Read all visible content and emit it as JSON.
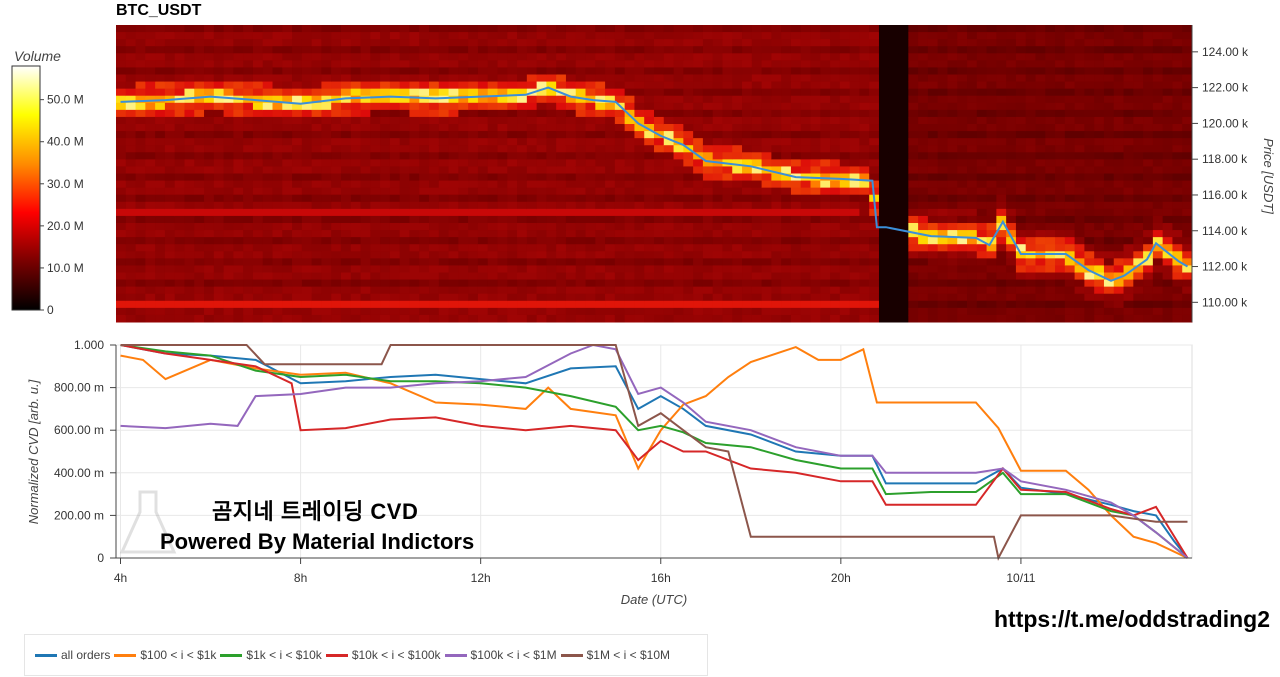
{
  "chart_data": [
    {
      "type": "heatmap",
      "title": "BTC_USDT",
      "ylabel": "Price [USDT]",
      "ylim": [
        108900,
        125500
      ],
      "yticks": [
        110000,
        112000,
        114000,
        116000,
        118000,
        120000,
        122000,
        124000
      ],
      "ytick_labels": [
        "110.00 k",
        "112.00 k",
        "114.00 k",
        "116.00 k",
        "118.00 k",
        "120.00 k",
        "122.00 k",
        "124.00 k"
      ],
      "colorbar": {
        "title": "Volume",
        "range": [
          0,
          58000000
        ],
        "ticks": [
          0,
          10000000,
          20000000,
          30000000,
          40000000,
          50000000
        ],
        "tick_labels": [
          "0",
          "10.0 M",
          "20.0 M",
          "30.0 M",
          "40.0 M",
          "50.0 M"
        ]
      },
      "price_line": {
        "x": [
          4.0,
          5.0,
          6.0,
          7.0,
          8.0,
          9.0,
          10.0,
          11.0,
          12.0,
          13.0,
          13.5,
          14.0,
          14.5,
          15.0,
          15.5,
          16.0,
          16.5,
          17.0,
          18.0,
          19.0,
          20.0,
          20.7,
          20.8,
          21.0,
          22.0,
          23.0,
          23.3,
          23.6,
          24.0,
          25.0,
          25.5,
          26.0,
          26.3,
          26.8,
          27.0,
          27.5,
          27.7
        ],
        "y": [
          121200,
          121300,
          121500,
          121300,
          121100,
          121400,
          121500,
          121400,
          121500,
          121600,
          122000,
          121500,
          121300,
          121200,
          120000,
          119300,
          118800,
          117900,
          117600,
          117000,
          116900,
          116800,
          114200,
          114200,
          113700,
          113600,
          113200,
          114500,
          112700,
          112700,
          111800,
          111200,
          111500,
          112400,
          113300,
          112300,
          112000
        ]
      }
    },
    {
      "type": "line",
      "xlabel": "Date (UTC)",
      "ylabel": "Normalized CVD [arb. u.]",
      "ylim": [
        0,
        1000
      ],
      "yticks": [
        0,
        200,
        400,
        600,
        800,
        1000
      ],
      "ytick_labels": [
        "0",
        "200.00 m",
        "400.00 m",
        "600.00 m",
        "800.00 m",
        "1.000"
      ],
      "xlim": [
        3.9,
        27.8
      ],
      "xticks": [
        4,
        8,
        12,
        16,
        20,
        24
      ],
      "xtick_labels": [
        "4h",
        "8h",
        "12h",
        "16h",
        "20h",
        "10/11"
      ],
      "series": [
        {
          "name": "all orders",
          "color": "#1f77b4",
          "x": [
            4.0,
            5.0,
            6.0,
            7.0,
            8.0,
            9.0,
            10.0,
            11.0,
            12.0,
            13.0,
            14.0,
            15.0,
            15.5,
            16.0,
            16.5,
            17.0,
            18.0,
            19.0,
            20.0,
            20.7,
            21.0,
            22.0,
            23.0,
            23.6,
            24.0,
            25.0,
            26.0,
            26.5,
            27.0,
            27.4,
            27.7
          ],
          "y": [
            1000,
            960,
            950,
            930,
            820,
            830,
            850,
            860,
            840,
            820,
            890,
            900,
            700,
            760,
            700,
            620,
            580,
            500,
            480,
            480,
            350,
            350,
            350,
            420,
            330,
            300,
            250,
            220,
            200,
            80,
            0
          ]
        },
        {
          "name": "$100 < i < $1k",
          "color": "#ff7f0e",
          "x": [
            4.0,
            4.5,
            5.0,
            6.0,
            7.0,
            8.0,
            9.0,
            10.0,
            11.0,
            12.0,
            13.0,
            13.5,
            14.0,
            15.0,
            15.5,
            16.0,
            16.5,
            17.0,
            17.5,
            18.0,
            19.0,
            19.5,
            20.0,
            20.5,
            20.8,
            21.0,
            22.0,
            23.0,
            23.5,
            24.0,
            24.5,
            25.0,
            25.5,
            26.0,
            26.5,
            27.0,
            27.7
          ],
          "y": [
            950,
            930,
            840,
            930,
            890,
            860,
            870,
            820,
            730,
            720,
            700,
            800,
            700,
            670,
            420,
            600,
            720,
            760,
            850,
            920,
            990,
            930,
            930,
            980,
            730,
            730,
            730,
            730,
            610,
            410,
            410,
            410,
            320,
            200,
            100,
            70,
            0
          ]
        },
        {
          "name": "$1k < i < $10k",
          "color": "#2ca02c",
          "x": [
            4.0,
            5.0,
            6.0,
            7.0,
            8.0,
            9.0,
            10.0,
            11.0,
            12.0,
            13.0,
            14.0,
            15.0,
            15.5,
            16.0,
            16.5,
            17.0,
            18.0,
            19.0,
            20.0,
            20.7,
            21.0,
            22.0,
            23.0,
            23.6,
            24.0,
            25.0,
            26.0,
            26.5,
            27.0,
            27.7
          ],
          "y": [
            1000,
            970,
            950,
            880,
            850,
            860,
            830,
            830,
            820,
            800,
            760,
            710,
            600,
            620,
            590,
            540,
            520,
            460,
            420,
            420,
            300,
            310,
            310,
            400,
            300,
            300,
            220,
            200,
            120,
            0
          ]
        },
        {
          "name": "$10k < i < $100k",
          "color": "#d62728",
          "x": [
            4.0,
            5.0,
            6.0,
            7.0,
            7.8,
            8.0,
            9.0,
            10.0,
            11.0,
            12.0,
            13.0,
            14.0,
            15.0,
            15.5,
            16.0,
            16.5,
            17.0,
            18.0,
            19.0,
            20.0,
            20.7,
            21.0,
            22.0,
            23.0,
            23.6,
            24.0,
            25.0,
            26.0,
            26.5,
            27.0,
            27.7
          ],
          "y": [
            1000,
            960,
            930,
            900,
            820,
            600,
            610,
            650,
            660,
            620,
            600,
            620,
            600,
            460,
            550,
            500,
            500,
            420,
            400,
            360,
            360,
            250,
            250,
            250,
            420,
            320,
            310,
            230,
            200,
            240,
            0
          ]
        },
        {
          "name": "$100k < i < $1M",
          "color": "#9467bd",
          "x": [
            4.0,
            5.0,
            6.0,
            6.6,
            7.0,
            8.0,
            9.0,
            10.0,
            11.0,
            12.0,
            13.0,
            14.0,
            14.5,
            15.0,
            15.5,
            16.0,
            16.5,
            17.0,
            18.0,
            19.0,
            20.0,
            20.7,
            21.0,
            22.0,
            23.0,
            23.6,
            24.0,
            25.0,
            26.0,
            26.5,
            27.0,
            27.7
          ],
          "y": [
            620,
            610,
            630,
            620,
            760,
            770,
            800,
            800,
            820,
            830,
            850,
            960,
            1000,
            980,
            770,
            800,
            730,
            640,
            600,
            520,
            480,
            480,
            400,
            400,
            400,
            420,
            360,
            320,
            260,
            200,
            120,
            0
          ]
        },
        {
          "name": "$1M < i < $10M",
          "color": "#8c564b",
          "x": [
            4.0,
            5.0,
            6.0,
            6.8,
            7.2,
            8.0,
            9.0,
            9.8,
            10.0,
            11.0,
            12.0,
            13.0,
            14.0,
            15.0,
            15.5,
            16.0,
            17.0,
            17.5,
            18.0,
            18.5,
            19.0,
            20.0,
            21.0,
            22.0,
            23.0,
            23.4,
            23.5,
            24.0,
            25.0,
            26.0,
            27.0,
            27.7
          ],
          "y": [
            1000,
            1000,
            1000,
            1000,
            910,
            910,
            910,
            910,
            1000,
            1000,
            1000,
            1000,
            1000,
            1000,
            620,
            680,
            520,
            500,
            100,
            100,
            100,
            100,
            100,
            100,
            100,
            100,
            0,
            200,
            200,
            200,
            170,
            170
          ]
        }
      ]
    }
  ],
  "overlay": {
    "line1": "곰지네 트레이딩 CVD",
    "line2": "Powered By Material Indictors"
  },
  "link": "https://t.me/oddstrading2",
  "legend_entries": [
    "all orders",
    "$100 < i < $1k",
    "$1k < i < $10k",
    "$10k < i < $100k",
    "$100k < i < $1M",
    "$1M < i < $10M"
  ]
}
